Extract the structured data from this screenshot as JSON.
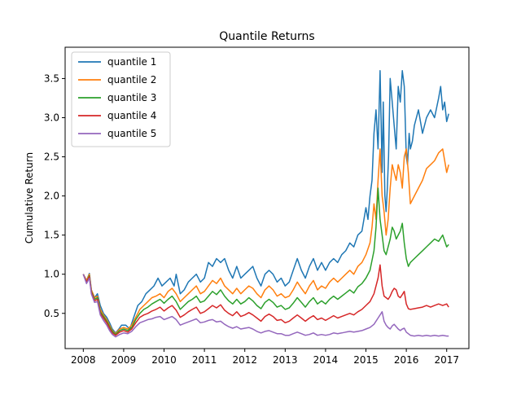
{
  "chart_data": {
    "type": "line",
    "title": "Quantile Returns",
    "xlabel": "",
    "ylabel": "Cumulative Return",
    "xlim": [
      2007.55,
      2017.55
    ],
    "ylim": [
      0.05,
      3.9
    ],
    "xticks": [
      2008,
      2009,
      2010,
      2011,
      2012,
      2013,
      2014,
      2015,
      2016,
      2017
    ],
    "yticks": [
      0.5,
      1.0,
      1.5,
      2.0,
      2.5,
      3.0,
      3.5
    ],
    "ytick_labels": [
      "0.5",
      "1.0",
      "1.5",
      "2.0",
      "2.5",
      "3.0",
      "3.5"
    ],
    "grid": false,
    "legend_position": "upper-left",
    "series": [
      {
        "name": "quantile 1",
        "color": "#1f77b4",
        "x": [
          2008.0,
          2008.08,
          2008.15,
          2008.2,
          2008.28,
          2008.35,
          2008.42,
          2008.5,
          2008.58,
          2008.65,
          2008.72,
          2008.8,
          2008.88,
          2008.95,
          2009.05,
          2009.15,
          2009.25,
          2009.35,
          2009.45,
          2009.55,
          2009.65,
          2009.75,
          2009.85,
          2009.95,
          2010.05,
          2010.15,
          2010.25,
          2010.3,
          2010.4,
          2010.5,
          2010.6,
          2010.7,
          2010.8,
          2010.9,
          2011.0,
          2011.1,
          2011.2,
          2011.3,
          2011.4,
          2011.5,
          2011.6,
          2011.7,
          2011.8,
          2011.9,
          2012.0,
          2012.1,
          2012.2,
          2012.3,
          2012.4,
          2012.5,
          2012.6,
          2012.7,
          2012.8,
          2012.9,
          2013.0,
          2013.1,
          2013.2,
          2013.3,
          2013.4,
          2013.5,
          2013.6,
          2013.7,
          2013.8,
          2013.9,
          2014.0,
          2014.1,
          2014.2,
          2014.3,
          2014.4,
          2014.5,
          2014.6,
          2014.7,
          2014.8,
          2014.9,
          2015.0,
          2015.05,
          2015.1,
          2015.15,
          2015.2,
          2015.25,
          2015.3,
          2015.35,
          2015.4,
          2015.43,
          2015.47,
          2015.5,
          2015.53,
          2015.56,
          2015.6,
          2015.65,
          2015.7,
          2015.75,
          2015.8,
          2015.85,
          2015.9,
          2015.95,
          2016.0,
          2016.03,
          2016.07,
          2016.1,
          2016.15,
          2016.2,
          2016.3,
          2016.4,
          2016.5,
          2016.6,
          2016.7,
          2016.8,
          2016.85,
          2016.9,
          2016.95,
          2017.0,
          2017.05
        ],
        "values": [
          1.0,
          0.92,
          1.01,
          0.8,
          0.7,
          0.75,
          0.6,
          0.5,
          0.45,
          0.38,
          0.3,
          0.25,
          0.3,
          0.35,
          0.35,
          0.3,
          0.45,
          0.6,
          0.65,
          0.75,
          0.8,
          0.85,
          0.95,
          0.85,
          0.9,
          0.95,
          0.85,
          1.0,
          0.75,
          0.8,
          0.9,
          0.95,
          1.0,
          0.9,
          0.95,
          1.15,
          1.1,
          1.2,
          1.15,
          1.2,
          1.05,
          0.95,
          1.1,
          0.95,
          1.0,
          1.05,
          1.1,
          0.95,
          0.85,
          1.0,
          1.05,
          1.0,
          0.9,
          0.95,
          0.85,
          0.9,
          1.05,
          1.2,
          1.05,
          0.95,
          1.1,
          1.2,
          1.05,
          1.15,
          1.05,
          1.15,
          1.2,
          1.15,
          1.25,
          1.3,
          1.4,
          1.35,
          1.5,
          1.55,
          1.85,
          1.7,
          2.0,
          2.2,
          2.8,
          3.1,
          2.6,
          3.6,
          2.3,
          3.2,
          2.0,
          1.8,
          2.1,
          2.5,
          3.5,
          3.2,
          2.9,
          2.6,
          3.4,
          3.2,
          3.6,
          3.4,
          2.5,
          2.4,
          2.8,
          2.6,
          2.7,
          2.9,
          3.1,
          2.8,
          3.0,
          3.1,
          3.0,
          3.25,
          3.4,
          3.1,
          3.2,
          2.95,
          3.05
        ]
      },
      {
        "name": "quantile 2",
        "color": "#ff7f0e",
        "x": [
          2008.0,
          2008.08,
          2008.15,
          2008.2,
          2008.28,
          2008.35,
          2008.42,
          2008.5,
          2008.58,
          2008.65,
          2008.72,
          2008.8,
          2008.9,
          2009.0,
          2009.1,
          2009.2,
          2009.3,
          2009.4,
          2009.5,
          2009.6,
          2009.7,
          2009.8,
          2009.9,
          2010.0,
          2010.1,
          2010.2,
          2010.3,
          2010.4,
          2010.5,
          2010.6,
          2010.7,
          2010.8,
          2010.9,
          2011.0,
          2011.1,
          2011.2,
          2011.3,
          2011.4,
          2011.5,
          2011.6,
          2011.7,
          2011.8,
          2011.9,
          2012.0,
          2012.1,
          2012.2,
          2012.3,
          2012.4,
          2012.5,
          2012.6,
          2012.7,
          2012.8,
          2012.9,
          2013.0,
          2013.1,
          2013.2,
          2013.3,
          2013.4,
          2013.5,
          2013.6,
          2013.7,
          2013.8,
          2013.9,
          2014.0,
          2014.1,
          2014.2,
          2014.3,
          2014.4,
          2014.5,
          2014.6,
          2014.7,
          2014.8,
          2014.9,
          2015.0,
          2015.1,
          2015.15,
          2015.2,
          2015.25,
          2015.3,
          2015.35,
          2015.4,
          2015.45,
          2015.5,
          2015.55,
          2015.6,
          2015.65,
          2015.7,
          2015.75,
          2015.8,
          2015.85,
          2015.9,
          2015.95,
          2016.0,
          2016.05,
          2016.1,
          2016.2,
          2016.3,
          2016.4,
          2016.5,
          2016.6,
          2016.7,
          2016.8,
          2016.9,
          2017.0,
          2017.05
        ],
        "values": [
          1.0,
          0.92,
          1.0,
          0.8,
          0.7,
          0.72,
          0.55,
          0.48,
          0.42,
          0.35,
          0.28,
          0.24,
          0.3,
          0.32,
          0.3,
          0.35,
          0.45,
          0.55,
          0.6,
          0.65,
          0.7,
          0.72,
          0.75,
          0.7,
          0.78,
          0.82,
          0.75,
          0.65,
          0.7,
          0.75,
          0.8,
          0.85,
          0.75,
          0.78,
          0.85,
          0.92,
          0.88,
          0.95,
          0.85,
          0.8,
          0.75,
          0.82,
          0.75,
          0.8,
          0.85,
          0.82,
          0.75,
          0.7,
          0.8,
          0.85,
          0.8,
          0.72,
          0.75,
          0.7,
          0.72,
          0.8,
          0.9,
          0.82,
          0.75,
          0.85,
          0.92,
          0.8,
          0.85,
          0.82,
          0.9,
          0.95,
          0.9,
          0.95,
          1.0,
          1.05,
          1.0,
          1.1,
          1.15,
          1.25,
          1.4,
          1.6,
          1.9,
          1.7,
          2.2,
          2.6,
          2.0,
          1.8,
          1.5,
          1.7,
          2.1,
          2.4,
          2.3,
          2.2,
          2.4,
          2.3,
          2.1,
          2.5,
          2.6,
          2.3,
          1.9,
          2.0,
          2.1,
          2.2,
          2.35,
          2.4,
          2.45,
          2.55,
          2.6,
          2.3,
          2.4
        ]
      },
      {
        "name": "quantile 3",
        "color": "#2ca02c",
        "x": [
          2008.0,
          2008.08,
          2008.15,
          2008.2,
          2008.28,
          2008.35,
          2008.42,
          2008.5,
          2008.58,
          2008.65,
          2008.72,
          2008.8,
          2008.9,
          2009.0,
          2009.1,
          2009.2,
          2009.3,
          2009.4,
          2009.5,
          2009.6,
          2009.7,
          2009.8,
          2009.9,
          2010.0,
          2010.1,
          2010.2,
          2010.3,
          2010.4,
          2010.5,
          2010.6,
          2010.7,
          2010.8,
          2010.9,
          2011.0,
          2011.1,
          2011.2,
          2011.3,
          2011.4,
          2011.5,
          2011.6,
          2011.7,
          2011.8,
          2011.9,
          2012.0,
          2012.1,
          2012.2,
          2012.3,
          2012.4,
          2012.5,
          2012.6,
          2012.7,
          2012.8,
          2012.9,
          2013.0,
          2013.1,
          2013.2,
          2013.3,
          2013.4,
          2013.5,
          2013.6,
          2013.7,
          2013.8,
          2013.9,
          2014.0,
          2014.1,
          2014.2,
          2014.3,
          2014.4,
          2014.5,
          2014.6,
          2014.7,
          2014.8,
          2014.9,
          2015.0,
          2015.1,
          2015.2,
          2015.25,
          2015.3,
          2015.35,
          2015.4,
          2015.45,
          2015.5,
          2015.55,
          2015.6,
          2015.65,
          2015.7,
          2015.75,
          2015.8,
          2015.85,
          2015.9,
          2015.95,
          2016.0,
          2016.05,
          2016.1,
          2016.2,
          2016.3,
          2016.4,
          2016.5,
          2016.6,
          2016.7,
          2016.8,
          2016.9,
          2017.0,
          2017.05
        ],
        "values": [
          1.0,
          0.9,
          0.98,
          0.78,
          0.68,
          0.7,
          0.52,
          0.46,
          0.4,
          0.33,
          0.27,
          0.23,
          0.28,
          0.3,
          0.28,
          0.32,
          0.42,
          0.5,
          0.55,
          0.58,
          0.62,
          0.65,
          0.68,
          0.63,
          0.68,
          0.72,
          0.65,
          0.55,
          0.6,
          0.65,
          0.68,
          0.72,
          0.64,
          0.66,
          0.72,
          0.78,
          0.74,
          0.8,
          0.72,
          0.66,
          0.62,
          0.68,
          0.62,
          0.65,
          0.7,
          0.66,
          0.6,
          0.56,
          0.64,
          0.68,
          0.64,
          0.58,
          0.6,
          0.55,
          0.57,
          0.63,
          0.7,
          0.64,
          0.58,
          0.65,
          0.7,
          0.62,
          0.66,
          0.62,
          0.68,
          0.72,
          0.68,
          0.72,
          0.76,
          0.8,
          0.76,
          0.84,
          0.88,
          0.95,
          1.05,
          1.3,
          1.6,
          2.1,
          1.7,
          1.5,
          1.3,
          1.25,
          1.35,
          1.45,
          1.6,
          1.55,
          1.45,
          1.5,
          1.55,
          1.65,
          1.4,
          1.2,
          1.1,
          1.15,
          1.2,
          1.25,
          1.3,
          1.35,
          1.4,
          1.45,
          1.42,
          1.5,
          1.35,
          1.38
        ]
      },
      {
        "name": "quantile 4",
        "color": "#d62728",
        "x": [
          2008.0,
          2008.08,
          2008.15,
          2008.2,
          2008.28,
          2008.35,
          2008.42,
          2008.5,
          2008.58,
          2008.65,
          2008.72,
          2008.8,
          2008.9,
          2009.0,
          2009.1,
          2009.2,
          2009.3,
          2009.4,
          2009.5,
          2009.6,
          2009.7,
          2009.8,
          2009.9,
          2010.0,
          2010.1,
          2010.2,
          2010.3,
          2010.4,
          2010.5,
          2010.6,
          2010.7,
          2010.8,
          2010.9,
          2011.0,
          2011.1,
          2011.2,
          2011.3,
          2011.4,
          2011.5,
          2011.6,
          2011.7,
          2011.8,
          2011.9,
          2012.0,
          2012.1,
          2012.2,
          2012.3,
          2012.4,
          2012.5,
          2012.6,
          2012.7,
          2012.8,
          2012.9,
          2013.0,
          2013.1,
          2013.2,
          2013.3,
          2013.4,
          2013.5,
          2013.6,
          2013.7,
          2013.8,
          2013.9,
          2014.0,
          2014.1,
          2014.2,
          2014.3,
          2014.4,
          2014.5,
          2014.6,
          2014.7,
          2014.8,
          2014.9,
          2015.0,
          2015.1,
          2015.2,
          2015.3,
          2015.35,
          2015.4,
          2015.45,
          2015.5,
          2015.55,
          2015.6,
          2015.65,
          2015.7,
          2015.75,
          2015.8,
          2015.85,
          2015.9,
          2015.95,
          2016.0,
          2016.05,
          2016.1,
          2016.2,
          2016.3,
          2016.4,
          2016.5,
          2016.6,
          2016.7,
          2016.8,
          2016.9,
          2017.0,
          2017.05
        ],
        "values": [
          1.0,
          0.9,
          0.97,
          0.77,
          0.66,
          0.68,
          0.5,
          0.44,
          0.38,
          0.31,
          0.25,
          0.22,
          0.26,
          0.28,
          0.26,
          0.3,
          0.38,
          0.45,
          0.48,
          0.5,
          0.53,
          0.55,
          0.58,
          0.53,
          0.57,
          0.6,
          0.54,
          0.45,
          0.48,
          0.52,
          0.55,
          0.58,
          0.5,
          0.52,
          0.56,
          0.6,
          0.57,
          0.61,
          0.54,
          0.5,
          0.47,
          0.52,
          0.46,
          0.48,
          0.51,
          0.48,
          0.44,
          0.4,
          0.46,
          0.49,
          0.46,
          0.41,
          0.42,
          0.38,
          0.4,
          0.44,
          0.48,
          0.44,
          0.4,
          0.44,
          0.47,
          0.42,
          0.44,
          0.41,
          0.44,
          0.47,
          0.44,
          0.46,
          0.48,
          0.5,
          0.48,
          0.52,
          0.55,
          0.6,
          0.65,
          0.75,
          0.95,
          1.12,
          0.85,
          0.72,
          0.7,
          0.68,
          0.72,
          0.78,
          0.82,
          0.8,
          0.72,
          0.7,
          0.74,
          0.78,
          0.62,
          0.56,
          0.55,
          0.56,
          0.57,
          0.58,
          0.6,
          0.58,
          0.6,
          0.62,
          0.6,
          0.62,
          0.58
        ]
      },
      {
        "name": "quantile 5",
        "color": "#9467bd",
        "x": [
          2008.0,
          2008.08,
          2008.15,
          2008.2,
          2008.28,
          2008.35,
          2008.42,
          2008.5,
          2008.58,
          2008.65,
          2008.72,
          2008.8,
          2008.9,
          2009.0,
          2009.1,
          2009.2,
          2009.3,
          2009.4,
          2009.5,
          2009.6,
          2009.7,
          2009.8,
          2009.9,
          2010.0,
          2010.1,
          2010.2,
          2010.3,
          2010.4,
          2010.5,
          2010.6,
          2010.7,
          2010.8,
          2010.9,
          2011.0,
          2011.1,
          2011.2,
          2011.3,
          2011.4,
          2011.5,
          2011.6,
          2011.7,
          2011.8,
          2011.9,
          2012.0,
          2012.1,
          2012.2,
          2012.3,
          2012.4,
          2012.5,
          2012.6,
          2012.7,
          2012.8,
          2012.9,
          2013.0,
          2013.1,
          2013.2,
          2013.3,
          2013.4,
          2013.5,
          2013.6,
          2013.7,
          2013.8,
          2013.9,
          2014.0,
          2014.1,
          2014.2,
          2014.3,
          2014.4,
          2014.5,
          2014.6,
          2014.7,
          2014.8,
          2014.9,
          2015.0,
          2015.1,
          2015.2,
          2015.3,
          2015.4,
          2015.45,
          2015.5,
          2015.55,
          2015.6,
          2015.65,
          2015.7,
          2015.75,
          2015.8,
          2015.85,
          2015.9,
          2015.95,
          2016.0,
          2016.1,
          2016.2,
          2016.3,
          2016.4,
          2016.5,
          2016.6,
          2016.7,
          2016.8,
          2016.9,
          2017.0,
          2017.05
        ],
        "values": [
          1.0,
          0.88,
          0.95,
          0.75,
          0.64,
          0.65,
          0.48,
          0.41,
          0.35,
          0.28,
          0.23,
          0.2,
          0.23,
          0.25,
          0.24,
          0.27,
          0.33,
          0.38,
          0.4,
          0.42,
          0.43,
          0.45,
          0.46,
          0.42,
          0.44,
          0.46,
          0.42,
          0.35,
          0.37,
          0.39,
          0.41,
          0.43,
          0.38,
          0.39,
          0.41,
          0.42,
          0.39,
          0.4,
          0.36,
          0.33,
          0.31,
          0.33,
          0.3,
          0.31,
          0.32,
          0.3,
          0.27,
          0.25,
          0.27,
          0.28,
          0.26,
          0.24,
          0.24,
          0.22,
          0.22,
          0.24,
          0.26,
          0.24,
          0.22,
          0.23,
          0.25,
          0.22,
          0.23,
          0.22,
          0.23,
          0.25,
          0.24,
          0.25,
          0.26,
          0.27,
          0.26,
          0.27,
          0.28,
          0.3,
          0.32,
          0.36,
          0.44,
          0.52,
          0.4,
          0.35,
          0.32,
          0.3,
          0.34,
          0.36,
          0.33,
          0.3,
          0.28,
          0.3,
          0.31,
          0.26,
          0.22,
          0.21,
          0.22,
          0.21,
          0.22,
          0.21,
          0.22,
          0.21,
          0.22,
          0.21,
          0.21
        ]
      }
    ]
  }
}
